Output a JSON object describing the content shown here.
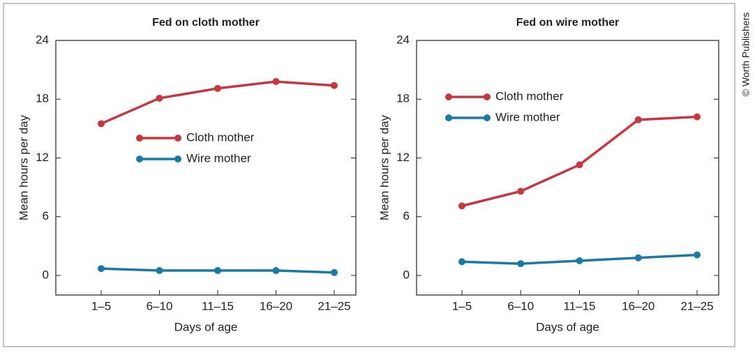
{
  "credit": "© Worth Publishers",
  "chart_data": [
    {
      "type": "line",
      "title": "Fed on cloth mother",
      "x_label": "Days of age",
      "y_label": "Mean hours per day",
      "categories": [
        "1–5",
        "6–10",
        "11–15",
        "16–20",
        "21–25"
      ],
      "series": [
        {
          "name": "Cloth mother",
          "color": "#c8363f",
          "values": [
            15.5,
            18.1,
            19.1,
            19.8,
            19.4
          ]
        },
        {
          "name": "Wire mother",
          "color": "#1a7aa3",
          "values": [
            0.7,
            0.5,
            0.5,
            0.5,
            0.3
          ]
        }
      ],
      "ylim": [
        -2,
        24
      ],
      "yticks": [
        0,
        6,
        12,
        18,
        24
      ],
      "legend": "center"
    },
    {
      "type": "line",
      "title": "Fed on wire mother",
      "x_label": "Days of age",
      "y_label": "Mean hours per day",
      "categories": [
        "1–5",
        "6–10",
        "11–15",
        "16–20",
        "21–25"
      ],
      "series": [
        {
          "name": "Cloth mother",
          "color": "#c8363f",
          "values": [
            7.1,
            8.6,
            11.3,
            15.9,
            16.2
          ]
        },
        {
          "name": "Wire mother",
          "color": "#1a7aa3",
          "values": [
            1.4,
            1.2,
            1.5,
            1.8,
            2.1
          ]
        }
      ],
      "ylim": [
        -2,
        24
      ],
      "yticks": [
        0,
        6,
        12,
        18,
        24
      ],
      "legend": "upper left"
    }
  ]
}
